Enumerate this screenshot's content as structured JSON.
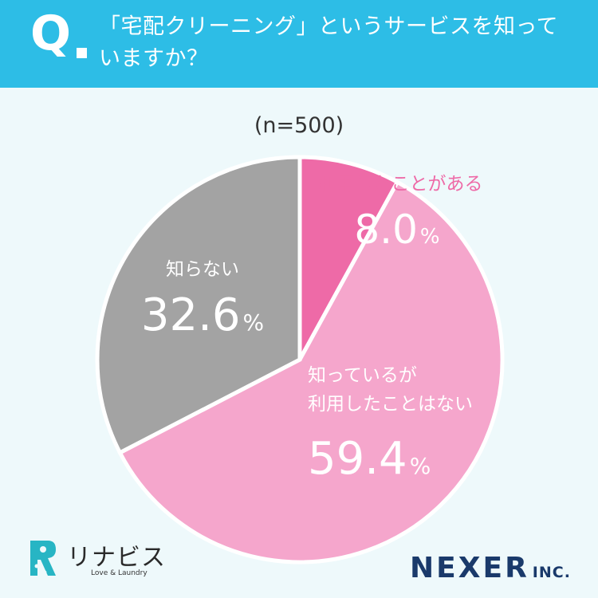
{
  "header": {
    "q_letter": "Q",
    "question": "「宅配クリーニング」というサービスを知っていますか？"
  },
  "sample_size": "(n=500)",
  "chart_data": {
    "type": "pie",
    "title": "「宅配クリーニング」というサービスを知っていますか？",
    "subtitle": "(n=500)",
    "start_angle_deg": 0,
    "direction": "clockwise",
    "slices": [
      {
        "label": "利用したことがある",
        "value": 8.0,
        "display": "8.0",
        "unit": "%",
        "color": "#ee6aa7",
        "label_color": "#ee6aa7",
        "value_color": "#ffffff"
      },
      {
        "label": "知っているが\n利用したことはない",
        "value": 59.4,
        "display": "59.4",
        "unit": "%",
        "color": "#f5a6cc",
        "label_color": "#ffffff",
        "value_color": "#ffffff"
      },
      {
        "label": "知らない",
        "value": 32.6,
        "display": "32.6",
        "unit": "%",
        "color": "#a3a3a3",
        "label_color": "#ffffff",
        "value_color": "#ffffff"
      }
    ]
  },
  "logos": {
    "left_name": "リナビス",
    "left_tagline": "Love & Laundry",
    "left_color": "#27b5c4",
    "right_main": "NEXER",
    "right_suffix": "INC.",
    "right_color": "#1a3a6b"
  }
}
